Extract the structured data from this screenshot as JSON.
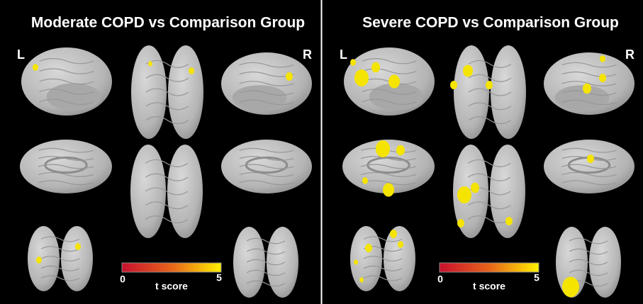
{
  "panels": [
    {
      "title": "Moderate  COPD vs Comparison Group",
      "left_label": "L",
      "right_label": "R",
      "colorbar": {
        "min": "0",
        "max": "5",
        "label": "t  score"
      }
    },
    {
      "title": "Severe  COPD  vs   Comparison  Group",
      "left_label": "L",
      "right_label": "R",
      "colorbar": {
        "min": "0",
        "max": "5",
        "label": "t  score"
      }
    }
  ]
}
